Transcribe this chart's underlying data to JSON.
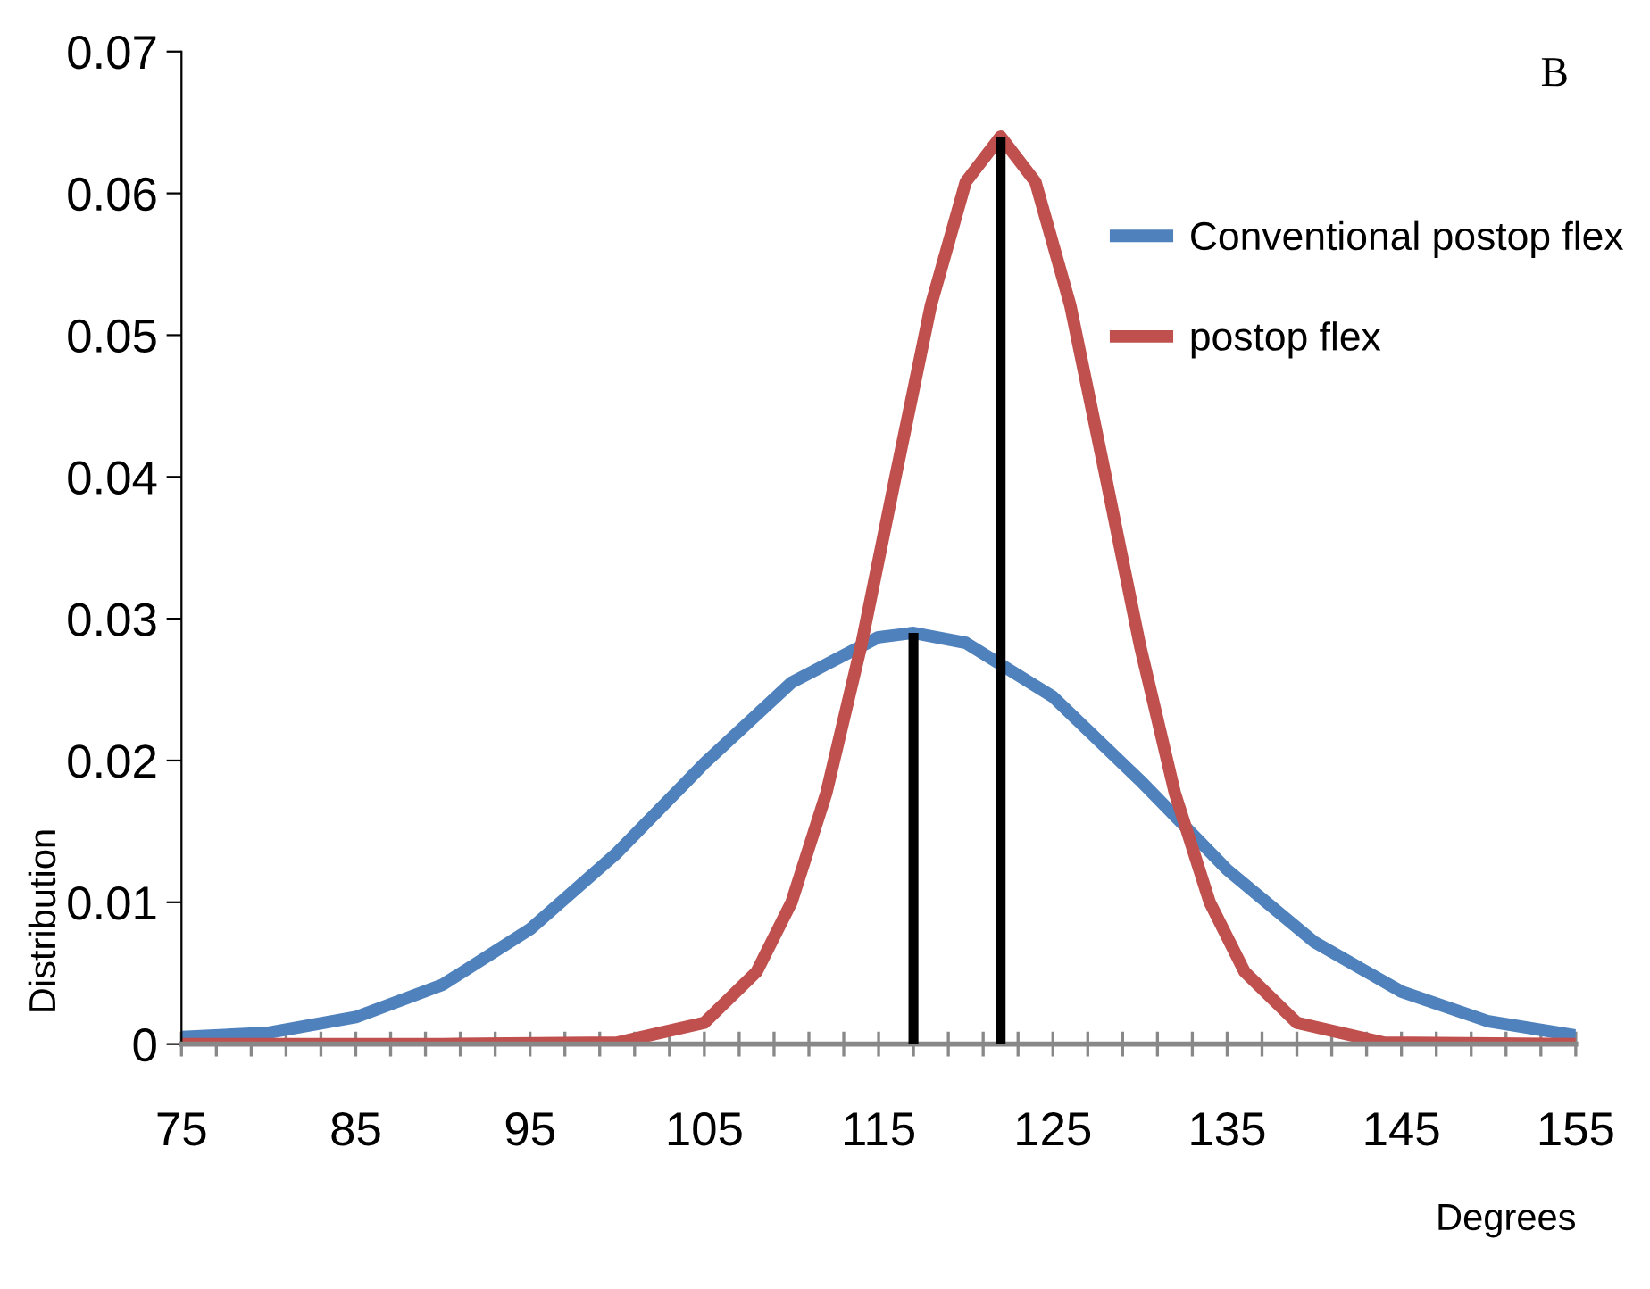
{
  "chart_data": {
    "type": "line",
    "xlabel": "Degrees",
    "ylabel": "Distribution",
    "annotations": [
      "B"
    ],
    "xlim": [
      75,
      155
    ],
    "ylim": [
      0,
      0.07
    ],
    "xticks": [
      75,
      {
        "value": 77,
        "label": null
      },
      {
        "value": 79,
        "label": null
      },
      {
        "value": 81,
        "label": null
      },
      {
        "value": 83,
        "label": null
      },
      85,
      {
        "value": 87,
        "label": null
      },
      {
        "value": 89,
        "label": null
      },
      {
        "value": 91,
        "label": null
      },
      {
        "value": 93,
        "label": null
      },
      95,
      {
        "value": 97,
        "label": null
      },
      {
        "value": 99,
        "label": null
      },
      {
        "value": 101,
        "label": null
      },
      {
        "value": 103,
        "label": null
      },
      105,
      {
        "value": 107,
        "label": null
      },
      {
        "value": 109,
        "label": null
      },
      {
        "value": 111,
        "label": null
      },
      {
        "value": 113,
        "label": null
      },
      115,
      {
        "value": 117,
        "label": null
      },
      {
        "value": 119,
        "label": null
      },
      {
        "value": 121,
        "label": null
      },
      {
        "value": 123,
        "label": null
      },
      125,
      {
        "value": 127,
        "label": null
      },
      {
        "value": 129,
        "label": null
      },
      {
        "value": 131,
        "label": null
      },
      {
        "value": 133,
        "label": null
      },
      135,
      {
        "value": 137,
        "label": null
      },
      {
        "value": 139,
        "label": null
      },
      {
        "value": 141,
        "label": null
      },
      {
        "value": 143,
        "label": null
      },
      145,
      {
        "value": 147,
        "label": null
      },
      {
        "value": 149,
        "label": null
      },
      {
        "value": 151,
        "label": null
      },
      {
        "value": 153,
        "label": null
      },
      155
    ],
    "yticks": [
      0,
      0.01,
      0.02,
      0.03,
      0.04,
      0.05,
      0.06,
      0.07
    ],
    "grid": false,
    "legend": "right",
    "marker": "none",
    "line_style": "solid",
    "series": [
      {
        "name": "Conventional postop flex",
        "color": "#4f81bd",
        "x": [
          75,
          80,
          85,
          90,
          95,
          100,
          105,
          110,
          115,
          117,
          120,
          125,
          130,
          135,
          140,
          145,
          150,
          155
        ],
        "values": [
          0.0005,
          0.0008,
          0.0019,
          0.0042,
          0.0081,
          0.0135,
          0.0198,
          0.0255,
          0.0287,
          0.029,
          0.0283,
          0.0245,
          0.0186,
          0.0123,
          0.0072,
          0.0037,
          0.0016,
          0.0006
        ]
      },
      {
        "name": "postop flex",
        "color": "#c0504d",
        "x": [
          75,
          90,
          100,
          105,
          108,
          110,
          112,
          114,
          116,
          118,
          120,
          122,
          124,
          126,
          128,
          130,
          132,
          134,
          136,
          139,
          144,
          155
        ],
        "values": [
          0,
          0,
          0.0001,
          0.0015,
          0.0051,
          0.01,
          0.0177,
          0.0281,
          0.0402,
          0.0521,
          0.0608,
          0.064,
          0.0608,
          0.0521,
          0.0402,
          0.0281,
          0.0177,
          0.01,
          0.0051,
          0.0015,
          0.0001,
          0
        ]
      },
      {
        "color": "#000000",
        "x": [
          117,
          117
        ],
        "values": [
          0,
          0.029
        ]
      },
      {
        "color": "#000000",
        "x": [
          122,
          122
        ],
        "values": [
          0,
          0.064
        ]
      }
    ]
  }
}
